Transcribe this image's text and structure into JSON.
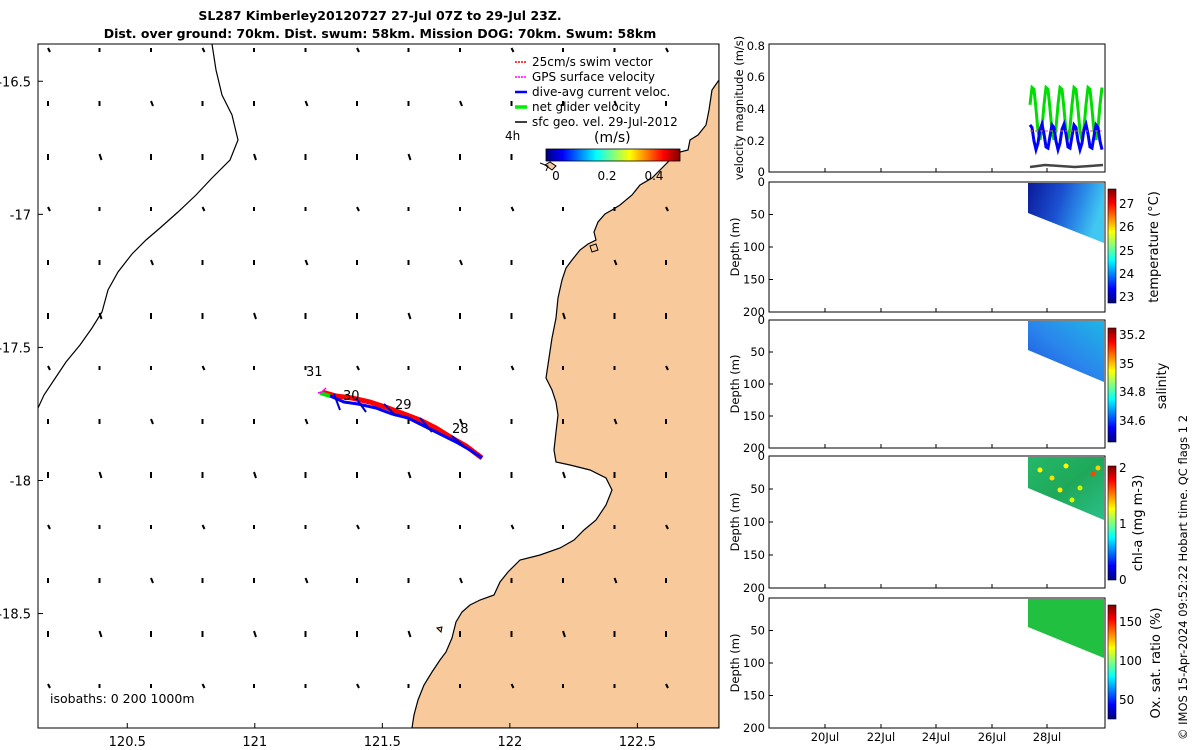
{
  "title": {
    "line1": "SL287 Kimberley20120727 27-Jul 07Z to 29-Jul 23Z.",
    "line2": "Dist. over ground: 70km. Dist. swum: 58km. Mission DOG: 70km. Swum: 58km"
  },
  "map": {
    "lat_ticks": [
      -16.5,
      -17,
      -17.5,
      -18,
      -18.5
    ],
    "lat_tick_labels": [
      "-16.5",
      "-17",
      "-17.5",
      "-18",
      "-18.5"
    ],
    "lon_ticks": [
      120.5,
      121,
      121.5,
      122,
      122.5
    ],
    "lon_tick_labels": [
      "120.5",
      "121",
      "121.5",
      "122",
      "122.5"
    ],
    "lon_range": [
      120.15,
      122.82
    ],
    "lat_range": [
      -18.93,
      -16.36
    ],
    "day_labels": [
      "31",
      "30",
      "29",
      "28"
    ],
    "isobaths_text": "isobaths: 0   200  1000m",
    "land_color": "#f8c99a",
    "legend": {
      "items": [
        {
          "label": "25cm/s swim vector",
          "color": "#ff0000"
        },
        {
          "label": "GPS surface velocity",
          "color": "#ff00ff"
        },
        {
          "label": "dive-avg current veloc.",
          "color": "#0000ff"
        },
        {
          "label": "net glider velocity",
          "color": "#00ee00"
        },
        {
          "label": "sfc geo. vel. 29-Jul-2012",
          "color": "#000000"
        }
      ],
      "time_label": "4h"
    },
    "colorbar": {
      "title": "(m/s)",
      "ticks": [
        "0",
        "0.2",
        "0.4"
      ],
      "range": [
        0,
        0.5
      ]
    }
  },
  "panels": {
    "x_tick_labels": [
      "20Jul",
      "22Jul",
      "24Jul",
      "26Jul",
      "28Jul"
    ],
    "velocity": {
      "ylabel": "velocity magnitude (m/s)",
      "y_ticks": [
        "0",
        "0.2",
        "0.4",
        "0.6",
        "0.8"
      ],
      "ylim": [
        0,
        0.8
      ]
    },
    "temperature": {
      "ylabel": "Depth (m)",
      "cbar_label": "temperature (°C)",
      "cbar_ticks": [
        "27",
        "26",
        "25",
        "24",
        "23"
      ],
      "y_ticks": [
        "0",
        "50",
        "100",
        "150",
        "200"
      ]
    },
    "salinity": {
      "ylabel": "Depth (m)",
      "cbar_label": "salinity",
      "cbar_ticks": [
        "35.2",
        "35",
        "34.8",
        "34.6"
      ],
      "y_ticks": [
        "0",
        "50",
        "100",
        "150",
        "200"
      ]
    },
    "chla": {
      "ylabel": "Depth (m)",
      "cbar_label": "chl-a (mg m-3)",
      "cbar_ticks": [
        "2",
        "1",
        "0"
      ],
      "y_ticks": [
        "0",
        "50",
        "100",
        "150",
        "200"
      ]
    },
    "oxygen": {
      "ylabel": "Depth (m)",
      "cbar_label": "Ox. sat. ratio (%)",
      "cbar_ticks": [
        "150",
        "100",
        "50"
      ],
      "y_ticks": [
        "0",
        "50",
        "100",
        "150",
        "200"
      ]
    }
  },
  "credit": "© IMOS 15-Apr-2024 09:52:22 Hobart time. QC flags 1  2"
}
